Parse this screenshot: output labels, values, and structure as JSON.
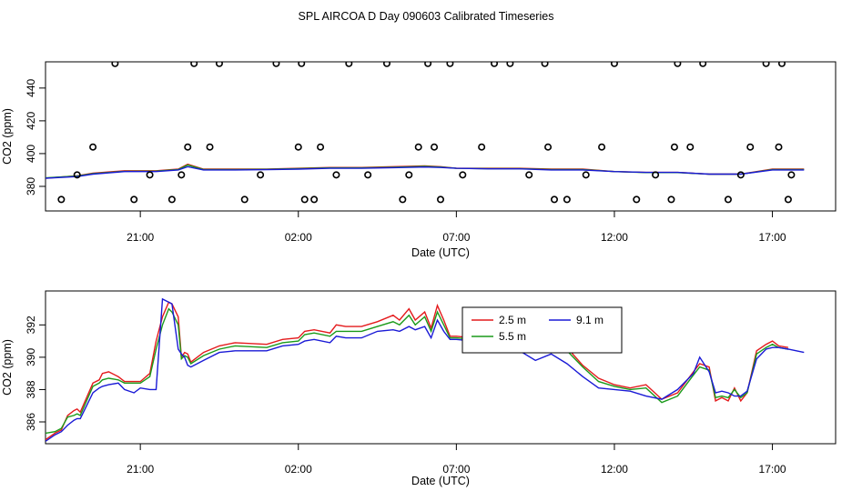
{
  "title": "SPL AIRCOA D  Day 090603  Calibrated Timeseries",
  "chart_data": [
    {
      "type": "scatter+line",
      "panel": "top",
      "xlabel": "Date (UTC)",
      "ylabel": "CO2 (ppm)",
      "x_units": "hours since 2009-06-02 16:00 UTC",
      "xlim": [
        0,
        25
      ],
      "ylim": [
        365,
        456
      ],
      "x_ticks": [
        {
          "x": 3,
          "label": "21:00"
        },
        {
          "x": 8,
          "label": "02:00"
        },
        {
          "x": 13,
          "label": "07:00"
        },
        {
          "x": 18,
          "label": "12:00"
        },
        {
          "x": 23,
          "label": "17:00"
        }
      ],
      "y_ticks": [
        {
          "y": 380,
          "label": "380"
        },
        {
          "y": 400,
          "label": "400"
        },
        {
          "y": 420,
          "label": "420"
        },
        {
          "y": 440,
          "label": "440"
        }
      ],
      "lines": [
        {
          "name": "2.5 m",
          "color": "#e41a1c",
          "t": [
            0.0,
            1.0,
            1.5,
            2.5,
            3.5,
            4.2,
            4.5,
            5.0,
            6.0,
            7.0,
            8.0,
            9.0,
            10.0,
            11.0,
            12.0,
            12.5,
            13.0,
            14.0,
            15.0,
            16.0,
            17.0,
            18.0,
            19.0,
            20.0,
            21.0,
            22.0,
            23.0,
            24.0
          ],
          "co2": [
            385.0,
            386.5,
            388.0,
            389.5,
            389.5,
            390.5,
            393.5,
            390.5,
            390.5,
            390.5,
            391.0,
            391.5,
            391.5,
            392.0,
            392.5,
            392.0,
            391.0,
            391.0,
            391.0,
            390.5,
            390.5,
            389.0,
            388.5,
            388.5,
            387.5,
            387.5,
            390.5,
            390.5
          ]
        },
        {
          "name": "5.5 m",
          "color": "#1a9a1a",
          "t": [
            0.0,
            1.0,
            1.5,
            2.5,
            3.5,
            4.2,
            4.5,
            5.0,
            6.0,
            7.0,
            8.0,
            9.0,
            10.0,
            11.0,
            12.0,
            12.5,
            13.0,
            14.0,
            15.0,
            16.0,
            17.0,
            18.0,
            19.0,
            20.0,
            21.0,
            22.0,
            23.0,
            24.0
          ],
          "co2": [
            385.2,
            386.3,
            387.8,
            389.2,
            389.3,
            390.3,
            393.0,
            390.3,
            390.3,
            390.4,
            390.8,
            391.3,
            391.3,
            391.7,
            392.2,
            391.8,
            391.0,
            390.8,
            390.8,
            390.3,
            390.3,
            389.0,
            388.4,
            388.4,
            387.4,
            387.4,
            390.3,
            390.3
          ]
        },
        {
          "name": "9.1 m",
          "color": "#1a1ad6",
          "t": [
            0.0,
            1.0,
            1.5,
            2.5,
            3.5,
            4.2,
            4.5,
            5.0,
            6.0,
            7.0,
            8.0,
            9.0,
            10.0,
            11.0,
            12.0,
            12.5,
            13.0,
            14.0,
            15.0,
            16.0,
            17.0,
            18.0,
            19.0,
            20.0,
            21.0,
            22.0,
            23.0,
            24.0
          ],
          "co2": [
            385.0,
            386.0,
            387.5,
            389.0,
            389.0,
            390.0,
            392.0,
            390.0,
            390.0,
            390.2,
            390.5,
            391.0,
            391.0,
            391.4,
            391.8,
            391.5,
            391.0,
            390.7,
            390.7,
            390.0,
            390.0,
            389.0,
            388.5,
            388.5,
            387.5,
            387.5,
            390.0,
            390.0
          ]
        }
      ],
      "points": {
        "marker": "open circle",
        "t": [
          0.5,
          1.0,
          1.5,
          2.2,
          2.8,
          3.3,
          4.0,
          4.3,
          4.5,
          4.7,
          5.2,
          5.5,
          6.3,
          6.8,
          7.3,
          8.0,
          8.1,
          8.2,
          8.5,
          8.7,
          9.2,
          9.6,
          10.2,
          10.8,
          11.3,
          11.5,
          11.8,
          12.1,
          12.3,
          12.5,
          12.8,
          13.2,
          13.8,
          14.2,
          14.7,
          15.3,
          15.8,
          15.9,
          16.1,
          16.5,
          17.1,
          17.6,
          18.0,
          18.7,
          19.3,
          19.8,
          19.9,
          20.0,
          20.4,
          20.8,
          21.6,
          22.0,
          22.3,
          22.8,
          23.2,
          23.3,
          23.5,
          23.6
        ],
        "co2": [
          372,
          387,
          404,
          455,
          372,
          387,
          372,
          387,
          404,
          455,
          404,
          455,
          372,
          387,
          455,
          404,
          455,
          372,
          372,
          404,
          387,
          455,
          387,
          455,
          372,
          387,
          404,
          455,
          404,
          372,
          455,
          387,
          404,
          455,
          455,
          387,
          455,
          404,
          372,
          372,
          387,
          404,
          455,
          372,
          387,
          372,
          404,
          455,
          404,
          455,
          372,
          387,
          404,
          455,
          404,
          455,
          372,
          387
        ]
      }
    },
    {
      "type": "line",
      "panel": "bottom",
      "xlabel": "Date (UTC)",
      "ylabel": "CO2 (ppm)",
      "x_units": "hours since 2009-06-02 16:00 UTC",
      "xlim": [
        0,
        25
      ],
      "ylim": [
        384.65,
        394.1
      ],
      "x_ticks": [
        {
          "x": 3,
          "label": "21:00"
        },
        {
          "x": 8,
          "label": "02:00"
        },
        {
          "x": 13,
          "label": "07:00"
        },
        {
          "x": 18,
          "label": "12:00"
        },
        {
          "x": 23,
          "label": "17:00"
        }
      ],
      "y_ticks": [
        {
          "y": 386,
          "label": "386"
        },
        {
          "y": 388,
          "label": "388"
        },
        {
          "y": 390,
          "label": "390"
        },
        {
          "y": 392,
          "label": "392"
        }
      ],
      "legend": {
        "entries": [
          "2.5 m",
          "9.1 m",
          "5.5 m"
        ],
        "placement": "top-center"
      },
      "series": [
        {
          "name": "2.5 m",
          "color": "#e41a1c",
          "t": [
            0.0,
            0.3,
            0.5,
            0.7,
            0.9,
            1.0,
            1.1,
            1.5,
            1.7,
            1.8,
            2.0,
            2.3,
            2.5,
            2.8,
            3.0,
            3.3,
            3.5,
            3.7,
            3.9,
            4.0,
            4.2,
            4.3,
            4.4,
            4.5,
            4.6,
            5.0,
            5.5,
            6.0,
            7.0,
            7.5,
            8.0,
            8.2,
            8.5,
            9.0,
            9.2,
            9.5,
            10.0,
            10.5,
            11.0,
            11.2,
            11.5,
            11.7,
            12.0,
            12.2,
            12.4,
            12.6,
            12.8,
            13.0,
            13.5,
            14.0,
            14.5,
            15.0,
            15.5,
            16.0,
            16.5,
            17.0,
            17.5,
            18.0,
            18.5,
            19.0,
            19.5,
            20.0,
            20.5,
            20.7,
            21.0,
            21.2,
            21.4,
            21.6,
            21.8,
            22.0,
            22.2,
            22.5,
            22.8,
            23.0,
            23.2,
            23.5
          ],
          "values": [
            384.9,
            385.3,
            385.5,
            386.4,
            386.7,
            386.8,
            386.6,
            388.4,
            388.6,
            389.0,
            389.1,
            388.8,
            388.5,
            388.5,
            388.5,
            389.0,
            391.0,
            392.5,
            393.4,
            393.3,
            392.5,
            390.0,
            390.3,
            390.2,
            389.7,
            390.3,
            390.7,
            390.9,
            390.8,
            391.1,
            391.2,
            391.6,
            391.7,
            391.5,
            392.0,
            391.9,
            391.9,
            392.2,
            392.6,
            392.3,
            393.0,
            392.3,
            392.8,
            391.8,
            393.2,
            392.3,
            391.3,
            391.3,
            391.2,
            391.2,
            391.0,
            390.6,
            390.6,
            390.9,
            390.6,
            389.5,
            388.7,
            388.3,
            388.1,
            388.3,
            387.4,
            387.8,
            389.1,
            389.6,
            389.4,
            387.3,
            387.5,
            387.3,
            388.1,
            387.3,
            387.8,
            390.4,
            390.8,
            391.0,
            390.7,
            390.6
          ]
        },
        {
          "name": "5.5 m",
          "color": "#1a9a1a",
          "t": [
            0.0,
            0.3,
            0.5,
            0.7,
            0.9,
            1.0,
            1.1,
            1.5,
            1.7,
            1.8,
            2.0,
            2.3,
            2.5,
            2.8,
            3.0,
            3.3,
            3.5,
            3.7,
            3.9,
            4.0,
            4.2,
            4.3,
            4.4,
            4.5,
            4.6,
            5.0,
            5.5,
            6.0,
            7.0,
            7.5,
            8.0,
            8.2,
            8.5,
            9.0,
            9.2,
            9.5,
            10.0,
            10.5,
            11.0,
            11.2,
            11.5,
            11.7,
            12.0,
            12.2,
            12.4,
            12.6,
            12.8,
            13.0,
            13.5,
            14.0,
            14.5,
            15.0,
            15.5,
            16.0,
            16.5,
            17.0,
            17.5,
            18.0,
            18.5,
            19.0,
            19.5,
            20.0,
            20.5,
            20.7,
            21.0,
            21.2,
            21.4,
            21.6,
            21.8,
            22.0,
            22.2,
            22.5,
            22.8,
            23.0,
            23.2,
            23.5
          ],
          "values": [
            385.3,
            385.4,
            385.6,
            386.3,
            386.4,
            386.5,
            386.4,
            388.2,
            388.4,
            388.6,
            388.7,
            388.6,
            388.4,
            388.4,
            388.4,
            388.8,
            390.5,
            392.0,
            393.0,
            392.8,
            392.0,
            389.9,
            390.1,
            390.0,
            389.6,
            390.1,
            390.5,
            390.7,
            390.6,
            390.9,
            391.0,
            391.4,
            391.5,
            391.3,
            391.6,
            391.6,
            391.6,
            391.9,
            392.2,
            392.0,
            392.6,
            392.0,
            392.5,
            391.6,
            392.8,
            392.0,
            391.2,
            391.2,
            391.1,
            391.1,
            390.9,
            390.5,
            390.3,
            390.7,
            390.4,
            389.4,
            388.5,
            388.2,
            388.0,
            388.1,
            387.2,
            387.6,
            388.9,
            389.4,
            389.2,
            387.5,
            387.6,
            387.5,
            388.0,
            387.5,
            387.8,
            390.2,
            390.6,
            390.8,
            390.6,
            390.5
          ]
        },
        {
          "name": "9.1 m",
          "color": "#1a1ad6",
          "t": [
            0.0,
            0.3,
            0.5,
            0.7,
            0.9,
            1.0,
            1.1,
            1.5,
            1.7,
            1.8,
            2.0,
            2.3,
            2.5,
            2.8,
            3.0,
            3.3,
            3.5,
            3.7,
            3.9,
            4.0,
            4.2,
            4.3,
            4.4,
            4.5,
            4.6,
            5.0,
            5.5,
            6.0,
            7.0,
            7.5,
            8.0,
            8.2,
            8.5,
            9.0,
            9.2,
            9.5,
            10.0,
            10.5,
            11.0,
            11.2,
            11.5,
            11.7,
            12.0,
            12.2,
            12.4,
            12.6,
            12.8,
            13.0,
            13.5,
            14.0,
            14.5,
            15.0,
            15.5,
            16.0,
            16.5,
            17.0,
            17.5,
            18.0,
            18.5,
            19.0,
            19.5,
            20.0,
            20.5,
            20.7,
            21.0,
            21.2,
            21.4,
            21.6,
            21.8,
            22.0,
            22.2,
            22.5,
            22.8,
            23.0,
            23.2,
            23.5,
            24.0
          ],
          "values": [
            384.8,
            385.2,
            385.4,
            385.8,
            386.1,
            386.2,
            386.2,
            387.8,
            388.1,
            388.2,
            388.3,
            388.4,
            388.0,
            387.8,
            388.1,
            388.0,
            388.0,
            393.6,
            393.4,
            393.3,
            390.5,
            390.2,
            390.0,
            389.5,
            389.4,
            389.8,
            390.3,
            390.4,
            390.4,
            390.7,
            390.8,
            391.0,
            391.1,
            390.9,
            391.3,
            391.2,
            391.2,
            391.6,
            391.7,
            391.6,
            391.9,
            391.7,
            391.9,
            391.2,
            392.3,
            391.6,
            391.1,
            391.1,
            391.0,
            391.0,
            390.7,
            390.4,
            389.8,
            390.2,
            389.6,
            388.8,
            388.1,
            388.0,
            387.9,
            387.6,
            387.4,
            388.0,
            389.0,
            390.0,
            389.1,
            387.8,
            387.9,
            387.8,
            387.6,
            387.6,
            387.9,
            389.9,
            390.5,
            390.6,
            390.6,
            390.5,
            390.3
          ]
        }
      ]
    }
  ]
}
